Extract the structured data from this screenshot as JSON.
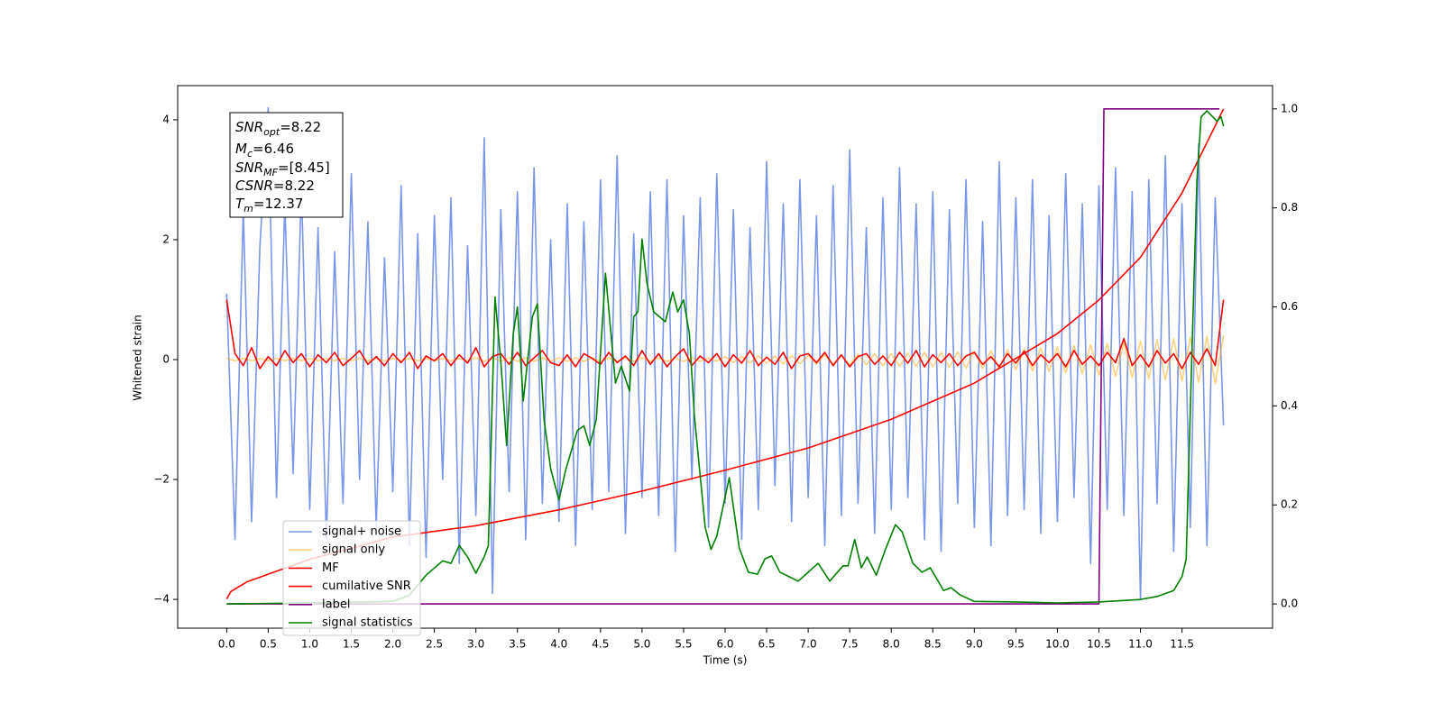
{
  "chart_data": {
    "type": "line",
    "xlabel": "Time (s)",
    "ylabel": "Whitened strain",
    "xlim": [
      -0.59,
      12.59
    ],
    "ylim": [
      -4.48,
      4.57
    ],
    "y2lim": [
      -0.049,
      1.047
    ],
    "xticks": [
      {
        "value": 0,
        "label": "0.0"
      },
      0.5,
      {
        "value": 1,
        "label": "1.0"
      },
      1.5,
      {
        "value": 2,
        "label": "2.0"
      },
      2.5,
      {
        "value": 3,
        "label": "3.0"
      },
      3.5,
      {
        "value": 4,
        "label": "4.0"
      },
      4.5,
      {
        "value": 5,
        "label": "5.0"
      },
      5.5,
      {
        "value": 6,
        "label": "6.0"
      },
      6.5,
      {
        "value": 7,
        "label": "7.0"
      },
      7.5,
      {
        "value": 8,
        "label": "8.0"
      },
      8.5,
      {
        "value": 9,
        "label": "9.0"
      },
      9.5,
      {
        "value": 10,
        "label": "10.0"
      },
      10.5,
      {
        "value": 11,
        "label": "11.0"
      },
      11.5
    ],
    "yticks": [
      {
        "value": -4,
        "label": "−4"
      },
      {
        "value": -2,
        "label": "−2"
      },
      0,
      2,
      4
    ],
    "y2ticks": [
      {
        "value": 0,
        "label": "0.0"
      },
      0.2,
      0.4,
      0.6,
      0.8,
      {
        "value": 1,
        "label": "1.0"
      }
    ],
    "annotations": [
      {
        "symbol": "SNR",
        "sub": "opt",
        "text": "=8.22"
      },
      {
        "symbol": "M",
        "sub": "c",
        "text": "=6.46"
      },
      {
        "symbol": "SNR",
        "sub": "MF",
        "text": "=[8.45]"
      },
      {
        "symbol": "CSNR",
        "text": "=8.22"
      },
      {
        "symbol": "T",
        "sub": "m",
        "text": "=12.37"
      }
    ],
    "x": [
      0,
      0.1,
      0.2,
      0.3,
      0.4,
      0.5,
      0.6,
      0.7,
      0.8,
      0.9,
      1,
      1.1,
      1.2,
      1.3,
      1.4,
      1.5,
      1.6,
      1.7,
      1.8,
      1.9,
      2,
      2.1,
      2.2,
      2.3,
      2.4,
      2.5,
      2.6,
      2.7,
      2.8,
      2.9,
      3,
      3.1,
      3.2,
      3.3,
      3.4,
      3.5,
      3.6,
      3.7,
      3.8,
      3.9,
      4,
      4.1,
      4.2,
      4.3,
      4.4,
      4.5,
      4.6,
      4.7,
      4.8,
      4.9,
      5,
      5.1,
      5.2,
      5.3,
      5.4,
      5.5,
      5.6,
      5.7,
      5.8,
      5.9,
      6,
      6.1,
      6.2,
      6.3,
      6.4,
      6.5,
      6.6,
      6.7,
      6.8,
      6.9,
      7,
      7.1,
      7.2,
      7.3,
      7.4,
      7.5,
      7.6,
      7.7,
      7.8,
      7.9,
      8,
      8.1,
      8.2,
      8.3,
      8.4,
      8.5,
      8.6,
      8.7,
      8.8,
      8.9,
      9,
      9.1,
      9.2,
      9.3,
      9.4,
      9.5,
      9.6,
      9.7,
      9.8,
      9.9,
      10,
      10.1,
      10.2,
      10.3,
      10.4,
      10.5,
      10.6,
      10.7,
      10.8,
      10.9,
      11,
      11.1,
      11.2,
      11.3,
      11.4,
      11.5,
      11.6,
      11.7,
      11.8,
      11.9,
      12
    ],
    "series": [
      {
        "name": "signal+ noise",
        "color": "#4169e1",
        "opacity": 0.7,
        "values": [
          1.1,
          -3.0,
          2.5,
          -2.7,
          1.9,
          4.2,
          -2.3,
          2.6,
          -1.9,
          2.9,
          -2.5,
          2.2,
          -3.0,
          1.8,
          -2.4,
          3.1,
          -2.0,
          2.3,
          -2.8,
          1.7,
          -2.2,
          2.9,
          -3.1,
          2.1,
          -3.3,
          2.4,
          -2.0,
          2.7,
          -3.4,
          1.9,
          -2.6,
          3.7,
          -3.9,
          2.5,
          -2.2,
          2.8,
          -3.0,
          3.2,
          -2.4,
          2.0,
          -2.7,
          2.6,
          -3.1,
          2.3,
          -2.5,
          3.0,
          -2.2,
          3.4,
          -2.9,
          2.1,
          -2.3,
          2.8,
          -2.6,
          3.0,
          -3.2,
          2.4,
          -2.0,
          2.7,
          -2.8,
          3.1,
          -2.4,
          2.5,
          -3.0,
          2.2,
          -2.5,
          3.3,
          -2.1,
          2.6,
          -2.7,
          3.0,
          -2.3,
          2.4,
          -3.1,
          2.9,
          -2.6,
          3.5,
          -2.4,
          2.2,
          -2.9,
          2.7,
          -2.5,
          3.2,
          -2.3,
          2.6,
          -3.0,
          2.8,
          -3.2,
          2.5,
          -2.4,
          3.0,
          -2.8,
          2.3,
          -3.1,
          3.3,
          -2.6,
          2.7,
          -2.5,
          3.0,
          -2.9,
          2.4,
          -2.7,
          3.1,
          -2.3,
          2.6,
          -3.4,
          2.9,
          -2.5,
          3.2,
          -2.6,
          2.8,
          -4.0,
          3.0,
          -2.4,
          3.4,
          -3.2,
          2.6,
          -2.8,
          3.6,
          -3.1,
          2.7,
          -1.1
        ]
      },
      {
        "name": "signal only",
        "color": "orange",
        "opacity": 0.5,
        "values": [
          0.02,
          -0.02,
          0.02,
          -0.02,
          0.02,
          -0.02,
          0.02,
          -0.02,
          0.02,
          -0.02,
          0.02,
          -0.02,
          0.02,
          -0.02,
          0.02,
          -0.02,
          0.02,
          -0.02,
          0.02,
          -0.02,
          0.02,
          -0.02,
          0.02,
          -0.02,
          0.02,
          -0.02,
          0.02,
          -0.02,
          0.02,
          -0.02,
          0.03,
          -0.03,
          0.03,
          -0.03,
          0.03,
          -0.03,
          0.03,
          -0.03,
          0.03,
          -0.03,
          0.03,
          -0.03,
          0.03,
          -0.03,
          0.03,
          -0.03,
          0.03,
          -0.03,
          0.03,
          -0.03,
          0.03,
          -0.03,
          0.03,
          -0.03,
          0.03,
          -0.03,
          0.03,
          -0.03,
          0.03,
          -0.03,
          0.05,
          -0.05,
          0.05,
          -0.06,
          0.06,
          -0.06,
          0.06,
          -0.07,
          0.07,
          -0.07,
          0.07,
          -0.08,
          0.08,
          -0.08,
          0.08,
          -0.09,
          0.09,
          -0.09,
          0.1,
          -0.1,
          0.1,
          -0.11,
          0.11,
          -0.11,
          0.12,
          -0.12,
          0.12,
          -0.13,
          0.13,
          -0.14,
          0.14,
          -0.15,
          0.15,
          -0.16,
          0.17,
          -0.17,
          0.18,
          -0.19,
          0.2,
          -0.2,
          0.21,
          -0.22,
          0.23,
          -0.24,
          0.25,
          -0.26,
          0.27,
          -0.28,
          0.29,
          -0.3,
          0.31,
          -0.32,
          0.33,
          -0.34,
          0.35,
          -0.36,
          0.37,
          -0.38,
          0.39,
          -0.4,
          0.4
        ]
      },
      {
        "name": "MF",
        "color": "red",
        "opacity": 1,
        "values": [
          1.0,
          0.1,
          -0.1,
          0.2,
          -0.15,
          0.05,
          -0.1,
          0.15,
          -0.05,
          0.1,
          -0.12,
          0.08,
          -0.05,
          0.12,
          -0.1,
          0.02,
          0.15,
          -0.08,
          0.05,
          -0.1,
          0.1,
          -0.05,
          0.12,
          -0.15,
          0.06,
          -0.02,
          0.1,
          -0.1,
          0.08,
          -0.06,
          0.2,
          -0.12,
          0.05,
          0.1,
          -0.08,
          0.12,
          -0.1,
          0.03,
          0.15,
          -0.05,
          -0.1,
          0.08,
          -0.12,
          0.1,
          0.02,
          -0.08,
          0.12,
          -0.05,
          0.06,
          -0.1,
          0.15,
          -0.08,
          0.1,
          -0.12,
          0.05,
          0.18,
          -0.1,
          0.06,
          -0.05,
          0.1,
          -0.12,
          0.08,
          -0.06,
          0.15,
          -0.1,
          0.04,
          -0.08,
          0.12,
          -0.15,
          0.06,
          0.1,
          -0.05,
          0.12,
          -0.1,
          0.08,
          -0.12,
          0.05,
          0.1,
          -0.08,
          0.06,
          -0.1,
          0.12,
          -0.06,
          0.15,
          -0.12,
          0.08,
          -0.05,
          0.1,
          -0.1,
          0.06,
          0.12,
          -0.08,
          0.05,
          -0.12,
          0.1,
          -0.06,
          0.14,
          -0.1,
          0.08,
          -0.05,
          0.1,
          -0.12,
          0.15,
          -0.08,
          0.06,
          -0.1,
          0.12,
          -0.05,
          0.35,
          -0.1,
          0.08,
          -0.12,
          0.15,
          -0.06,
          0.1,
          -0.15,
          0.12,
          -0.08,
          0.18,
          -0.1,
          1.0
        ]
      },
      {
        "name": "cumilative SNR",
        "color": "red",
        "opacity": 1,
        "axis": "y2",
        "x": [
          0,
          0.05,
          0.25,
          0.5,
          1,
          2,
          3,
          4,
          5,
          6,
          7,
          8,
          9,
          10,
          10.5,
          11,
          11.5,
          12
        ],
        "values": [
          0.01,
          0.025,
          0.045,
          0.06,
          0.09,
          0.135,
          0.158,
          0.19,
          0.228,
          0.27,
          0.315,
          0.373,
          0.446,
          0.546,
          0.614,
          0.7,
          0.83,
          1.0
        ]
      },
      {
        "name": "label",
        "color": "purple",
        "opacity": 1,
        "axis": "y2",
        "x": [
          0,
          10.5,
          10.56,
          11.95
        ],
        "values": [
          0,
          0,
          1,
          1
        ]
      },
      {
        "name": "signal statistics",
        "color": "green",
        "opacity": 1,
        "axis": "y2",
        "x": [
          0,
          1,
          2,
          2.2,
          2.4,
          2.6,
          2.7,
          2.8,
          2.9,
          3.0,
          3.1,
          3.15,
          3.23,
          3.3,
          3.37,
          3.45,
          3.5,
          3.57,
          3.68,
          3.74,
          3.82,
          3.9,
          4.0,
          4.08,
          4.22,
          4.3,
          4.37,
          4.45,
          4.56,
          4.68,
          4.75,
          4.85,
          4.9,
          4.95,
          5.0,
          5.06,
          5.14,
          5.28,
          5.37,
          5.43,
          5.5,
          5.57,
          5.63,
          5.76,
          5.83,
          5.9,
          6.05,
          6.17,
          6.28,
          6.39,
          6.48,
          6.56,
          6.66,
          6.88,
          7.12,
          7.26,
          7.42,
          7.48,
          7.56,
          7.64,
          7.71,
          7.82,
          7.93,
          8.05,
          8.13,
          8.26,
          8.37,
          8.47,
          8.63,
          8.72,
          8.83,
          9.0,
          9.5,
          10.0,
          10.5,
          11.0,
          11.2,
          11.4,
          11.5,
          11.55,
          11.62,
          11.68,
          11.73,
          11.8,
          11.87,
          11.92,
          11.97,
          12.0
        ],
        "values": [
          0,
          0.002,
          0.005,
          0.018,
          0.058,
          0.087,
          0.082,
          0.118,
          0.095,
          0.062,
          0.095,
          0.118,
          0.62,
          0.49,
          0.32,
          0.546,
          0.6,
          0.41,
          0.58,
          0.606,
          0.373,
          0.273,
          0.21,
          0.27,
          0.35,
          0.36,
          0.32,
          0.373,
          0.668,
          0.446,
          0.48,
          0.43,
          0.58,
          0.59,
          0.737,
          0.647,
          0.59,
          0.57,
          0.63,
          0.59,
          0.614,
          0.546,
          0.38,
          0.155,
          0.11,
          0.137,
          0.255,
          0.113,
          0.064,
          0.06,
          0.091,
          0.097,
          0.064,
          0.046,
          0.082,
          0.046,
          0.077,
          0.077,
          0.13,
          0.073,
          0.095,
          0.058,
          0.11,
          0.16,
          0.146,
          0.082,
          0.064,
          0.073,
          0.027,
          0.033,
          0.018,
          0.005,
          0.004,
          0.002,
          0.004,
          0.009,
          0.015,
          0.027,
          0.055,
          0.09,
          0.51,
          0.856,
          0.984,
          0.996,
          0.984,
          0.975,
          0.984,
          0.965
        ]
      }
    ]
  }
}
